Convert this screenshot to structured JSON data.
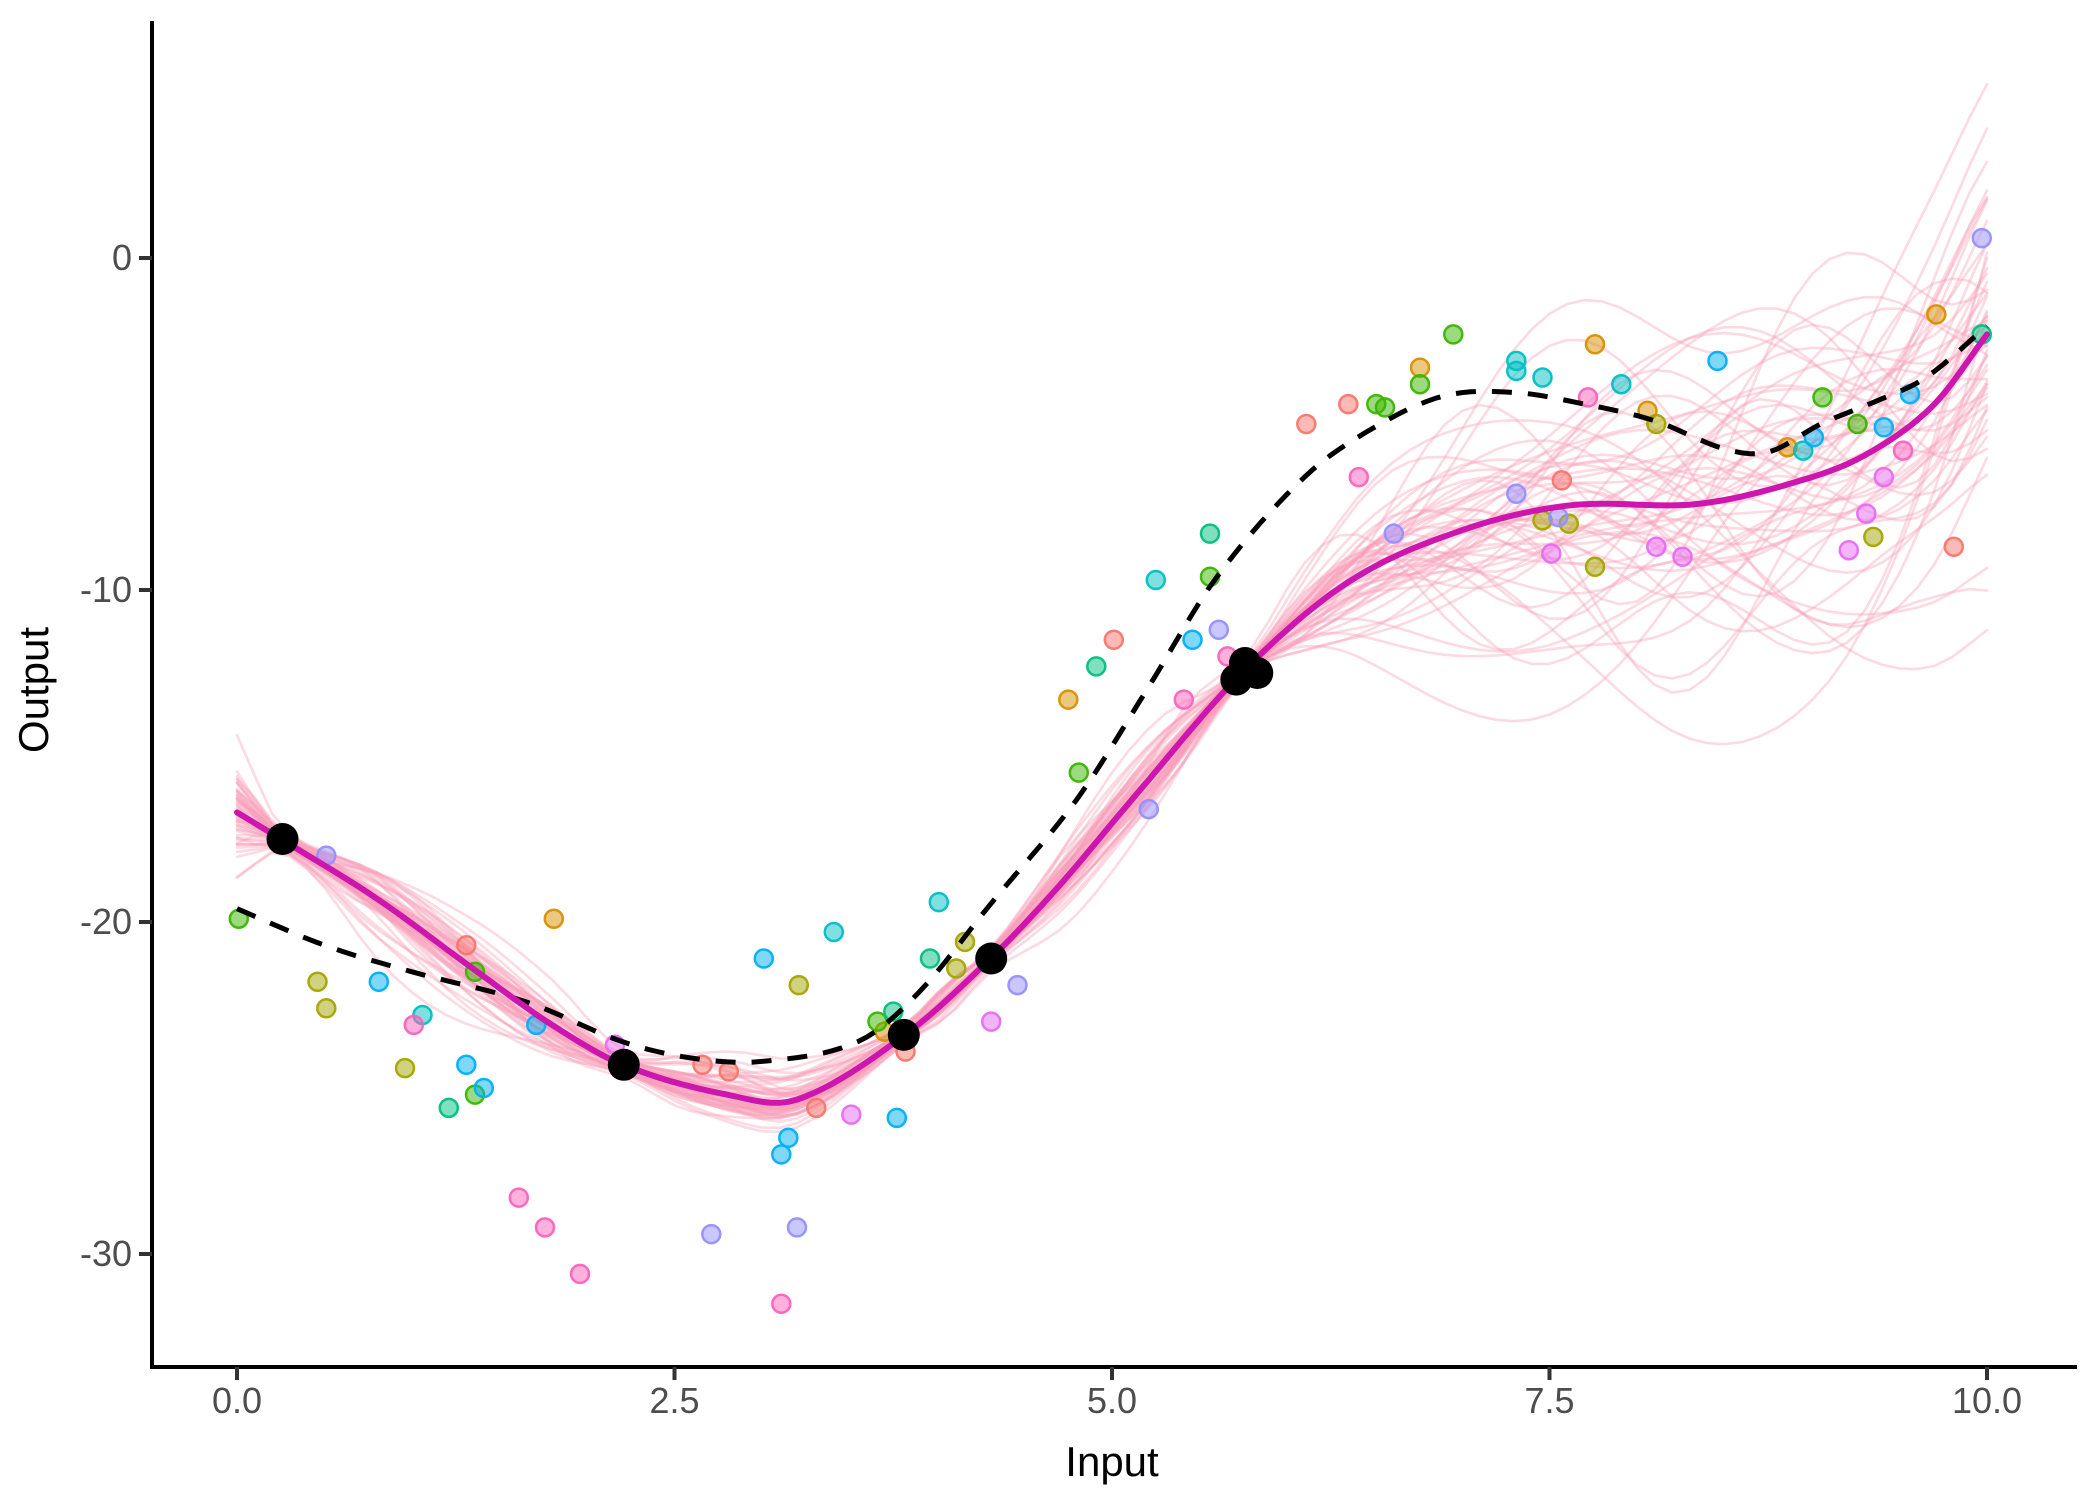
{
  "chart_data": {
    "type": "scatter",
    "title": "",
    "xlabel": "Input",
    "ylabel": "Output",
    "grid": false,
    "legend_position": "none",
    "xlim": [
      -0.49,
      10.5
    ],
    "ylim": [
      -33.3,
      7.1
    ],
    "x_ticks": {
      "values": [
        0,
        2.5,
        5,
        7.5,
        10
      ],
      "labels": [
        "0.0",
        "2.5",
        "5.0",
        "7.5",
        "10.0"
      ]
    },
    "y_ticks": {
      "values": [
        0,
        -10,
        -20,
        -30
      ],
      "labels": [
        "0",
        "-10",
        "-20",
        "-30"
      ]
    },
    "observed_points": {
      "name": "observed-training-points",
      "color": "#000000",
      "radius": 16,
      "points": [
        [
          0.26,
          -17.5
        ],
        [
          2.21,
          -24.3
        ],
        [
          3.81,
          -23.4
        ],
        [
          4.31,
          -21.1
        ],
        [
          5.71,
          -12.7
        ],
        [
          5.76,
          -12.2
        ],
        [
          5.83,
          -12.5
        ]
      ]
    },
    "true_function": {
      "name": "true-function-dashed",
      "color": "#000000",
      "style": "dashed",
      "width": 5,
      "points": [
        [
          0,
          -19.6
        ],
        [
          0.5,
          -20.7
        ],
        [
          1.0,
          -21.5
        ],
        [
          1.65,
          -22.4
        ],
        [
          2.2,
          -23.6
        ],
        [
          2.6,
          -24.1
        ],
        [
          3.0,
          -24.2
        ],
        [
          3.55,
          -23.6
        ],
        [
          3.9,
          -22.1
        ],
        [
          4.3,
          -19.5
        ],
        [
          4.8,
          -16.3
        ],
        [
          5.2,
          -13.0
        ],
        [
          5.6,
          -9.6
        ],
        [
          6.1,
          -6.6
        ],
        [
          6.5,
          -5.1
        ],
        [
          6.9,
          -4.15
        ],
        [
          7.3,
          -4.05
        ],
        [
          7.7,
          -4.4
        ],
        [
          8.1,
          -4.9
        ],
        [
          8.5,
          -5.75
        ],
        [
          8.75,
          -5.85
        ],
        [
          9.05,
          -5.0
        ],
        [
          9.35,
          -4.35
        ],
        [
          9.65,
          -3.6
        ],
        [
          10,
          -2.05
        ]
      ]
    },
    "posterior_mean": {
      "name": "posterior-mean-curve",
      "color": "#CC16AE",
      "width": 6,
      "points": [
        [
          0,
          -16.7
        ],
        [
          0.26,
          -17.53
        ],
        [
          0.8,
          -19.3
        ],
        [
          1.36,
          -21.45
        ],
        [
          1.8,
          -23.1
        ],
        [
          2.21,
          -24.31
        ],
        [
          2.8,
          -25.2
        ],
        [
          3.2,
          -25.35
        ],
        [
          3.81,
          -23.43
        ],
        [
          4.31,
          -21.08
        ],
        [
          4.7,
          -18.9
        ],
        [
          5.1,
          -16.4
        ],
        [
          5.76,
          -12.4
        ],
        [
          6.36,
          -9.73
        ],
        [
          7.0,
          -8.2
        ],
        [
          7.62,
          -7.45
        ],
        [
          8.36,
          -7.4
        ],
        [
          9.0,
          -6.6
        ],
        [
          9.35,
          -5.8
        ],
        [
          9.7,
          -4.4
        ],
        [
          10,
          -2.3
        ]
      ]
    },
    "posterior_draws": {
      "name": "posterior-draw-curves",
      "count": 55,
      "seed": 11,
      "color": "rgba(247,158,183,0.38)",
      "width": 2.6,
      "x_range": [
        0,
        10
      ],
      "spread_envelope": [
        [
          0,
          0.95
        ],
        [
          0.26,
          0.18
        ],
        [
          0.8,
          0.55
        ],
        [
          1.36,
          0.62
        ],
        [
          1.8,
          0.5
        ],
        [
          2.21,
          0.18
        ],
        [
          2.6,
          0.45
        ],
        [
          2.95,
          0.55
        ],
        [
          3.3,
          0.45
        ],
        [
          3.81,
          0.15
        ],
        [
          4.05,
          0.25
        ],
        [
          4.31,
          0.15
        ],
        [
          4.8,
          0.5
        ],
        [
          5.3,
          0.55
        ],
        [
          5.76,
          0.13
        ],
        [
          6.1,
          0.55
        ],
        [
          6.6,
          1.3
        ],
        [
          7.1,
          1.9
        ],
        [
          7.6,
          2.4
        ],
        [
          8.2,
          2.9
        ],
        [
          9.0,
          3.3
        ],
        [
          9.5,
          3.6
        ],
        [
          10,
          3.9
        ]
      ]
    },
    "scatter_groups": [
      {
        "name": "salmon",
        "color": "#F8766D",
        "points": [
          [
            1.31,
            -20.7
          ],
          [
            2.66,
            -24.3
          ],
          [
            2.81,
            -24.5
          ],
          [
            3.31,
            -25.6
          ],
          [
            3.82,
            -23.9
          ],
          [
            5.01,
            -11.5
          ],
          [
            6.11,
            -5.0
          ],
          [
            6.35,
            -4.4
          ],
          [
            7.57,
            -6.7
          ],
          [
            9.81,
            -8.7
          ]
        ]
      },
      {
        "name": "orange",
        "color": "#D89000",
        "points": [
          [
            1.81,
            -19.9
          ],
          [
            3.7,
            -23.3
          ],
          [
            4.75,
            -13.3
          ],
          [
            6.76,
            -3.3
          ],
          [
            7.76,
            -2.6
          ],
          [
            8.06,
            -4.6
          ],
          [
            8.86,
            -5.7
          ],
          [
            9.71,
            -1.7
          ]
        ]
      },
      {
        "name": "olive",
        "color": "#A3A500",
        "points": [
          [
            0.46,
            -21.8
          ],
          [
            0.51,
            -22.6
          ],
          [
            0.96,
            -24.4
          ],
          [
            3.21,
            -21.9
          ],
          [
            4.16,
            -20.6
          ],
          [
            4.11,
            -21.4
          ],
          [
            7.46,
            -7.9
          ],
          [
            7.61,
            -8.0
          ],
          [
            7.76,
            -9.3
          ],
          [
            8.11,
            -5.0
          ],
          [
            9.35,
            -8.4
          ]
        ]
      },
      {
        "name": "green",
        "color": "#39B600",
        "points": [
          [
            0.01,
            -19.9
          ],
          [
            1.36,
            -21.5
          ],
          [
            1.36,
            -25.2
          ],
          [
            3.66,
            -23.0
          ],
          [
            4.81,
            -15.5
          ],
          [
            5.56,
            -9.6
          ],
          [
            6.51,
            -4.4
          ],
          [
            6.56,
            -4.5
          ],
          [
            6.95,
            -2.3
          ],
          [
            6.76,
            -3.8
          ],
          [
            9.06,
            -4.2
          ],
          [
            9.26,
            -5.0
          ]
        ]
      },
      {
        "name": "mint",
        "color": "#00BF7D",
        "points": [
          [
            1.21,
            -25.6
          ],
          [
            3.75,
            -22.7
          ],
          [
            3.96,
            -21.1
          ],
          [
            4.91,
            -12.3
          ],
          [
            5.56,
            -8.3
          ],
          [
            9.97,
            -2.3
          ]
        ]
      },
      {
        "name": "teal",
        "color": "#00BFC4",
        "points": [
          [
            1.06,
            -22.8
          ],
          [
            3.41,
            -20.3
          ],
          [
            4.01,
            -19.4
          ],
          [
            5.25,
            -9.7
          ],
          [
            7.31,
            -3.1
          ],
          [
            7.31,
            -3.4
          ],
          [
            7.46,
            -3.6
          ],
          [
            7.91,
            -3.8
          ],
          [
            8.95,
            -5.8
          ]
        ]
      },
      {
        "name": "blue",
        "color": "#00B0F6",
        "points": [
          [
            0.81,
            -21.8
          ],
          [
            1.31,
            -24.3
          ],
          [
            1.41,
            -25.0
          ],
          [
            1.71,
            -23.1
          ],
          [
            3.01,
            -21.1
          ],
          [
            3.15,
            -26.5
          ],
          [
            3.11,
            -27.0
          ],
          [
            3.77,
            -25.9
          ],
          [
            5.46,
            -11.5
          ],
          [
            8.46,
            -3.1
          ],
          [
            9.01,
            -5.4
          ],
          [
            9.41,
            -5.1
          ],
          [
            9.56,
            -4.1
          ]
        ]
      },
      {
        "name": "lavender",
        "color": "#9590FF",
        "points": [
          [
            0.51,
            -18.0
          ],
          [
            2.71,
            -29.4
          ],
          [
            3.2,
            -29.2
          ],
          [
            4.46,
            -21.9
          ],
          [
            5.21,
            -16.6
          ],
          [
            5.61,
            -11.2
          ],
          [
            6.61,
            -8.3
          ],
          [
            7.31,
            -7.1
          ],
          [
            7.55,
            -7.8
          ],
          [
            9.97,
            0.6
          ]
        ]
      },
      {
        "name": "orchid",
        "color": "#E76BF3",
        "points": [
          [
            2.16,
            -23.7
          ],
          [
            3.51,
            -25.8
          ],
          [
            4.31,
            -23.0
          ],
          [
            7.51,
            -8.9
          ],
          [
            8.11,
            -8.7
          ],
          [
            8.26,
            -9.0
          ],
          [
            9.21,
            -8.8
          ],
          [
            9.31,
            -7.7
          ],
          [
            9.41,
            -6.6
          ]
        ]
      },
      {
        "name": "pink",
        "color": "#FF62BC",
        "points": [
          [
            1.01,
            -23.1
          ],
          [
            1.61,
            -28.3
          ],
          [
            1.76,
            -29.2
          ],
          [
            1.96,
            -30.6
          ],
          [
            3.11,
            -31.5
          ],
          [
            5.41,
            -13.3
          ],
          [
            5.66,
            -12.0
          ],
          [
            6.41,
            -6.6
          ],
          [
            7.72,
            -4.2
          ],
          [
            9.52,
            -5.8
          ]
        ]
      }
    ],
    "scatter_point_radius": 9,
    "axis_style": {
      "line_color": "#000000",
      "tick_color": "#333333",
      "tick_label_color": "#4d4d4d"
    }
  }
}
